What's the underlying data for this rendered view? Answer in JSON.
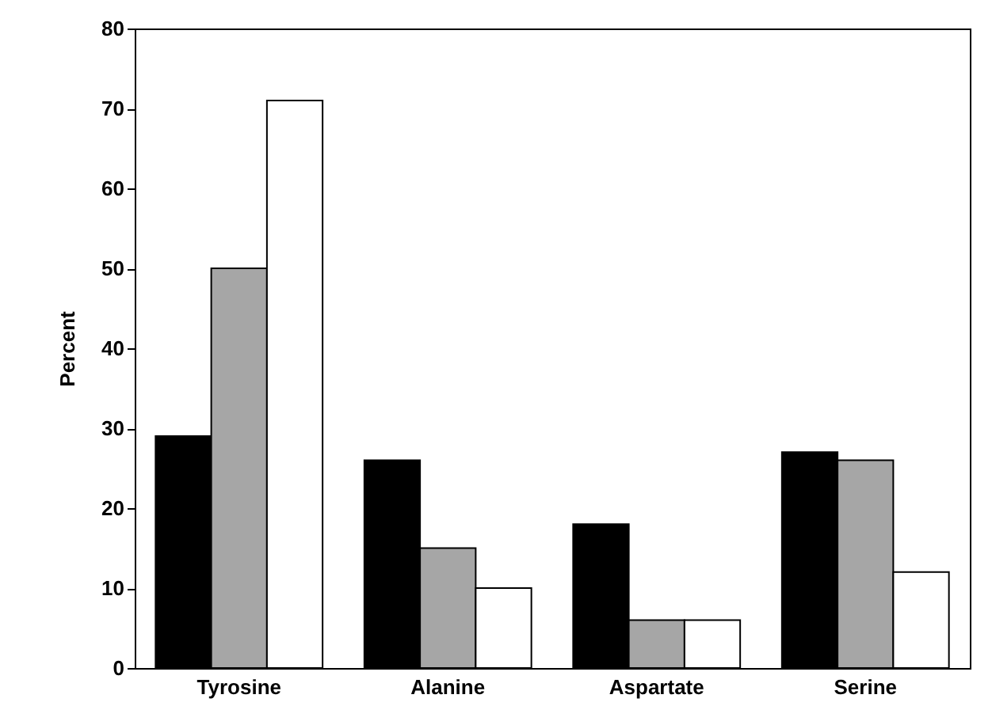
{
  "chart_data": {
    "type": "bar",
    "ylabel": "Percent",
    "categories": [
      "Tyrosine",
      "Alanine",
      "Aspartate",
      "Serine"
    ],
    "series": [
      {
        "color": "#000000",
        "values": [
          29,
          26,
          18,
          27
        ]
      },
      {
        "color": "#a6a6a6",
        "values": [
          50,
          15,
          6,
          26
        ]
      },
      {
        "color": "#ffffff",
        "values": [
          71,
          10,
          6,
          12
        ]
      }
    ],
    "ylim": [
      0,
      80
    ],
    "yticks": [
      0,
      10,
      20,
      30,
      40,
      50,
      60,
      70,
      80
    ],
    "grid": false
  }
}
